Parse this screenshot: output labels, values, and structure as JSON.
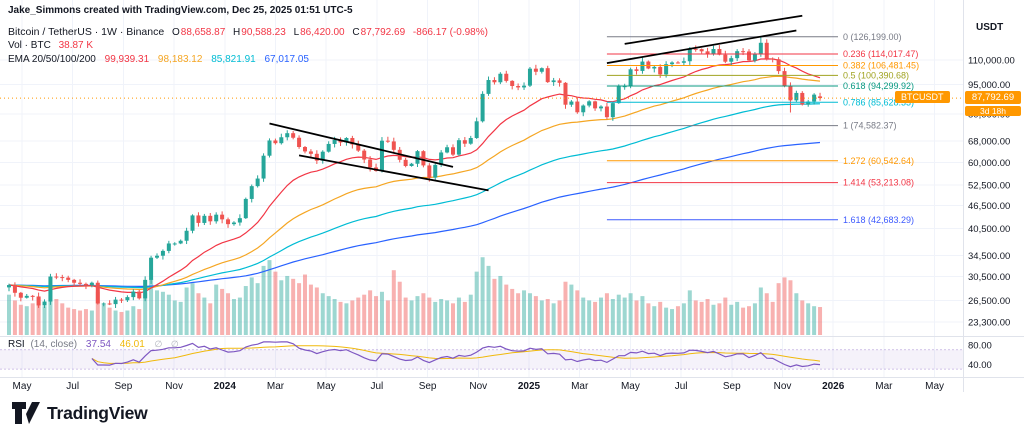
{
  "attribution": "Jake_Simmons created with TradingView.com, Dec 25, 2025 01:51 UTC-5",
  "legend": {
    "symbol": "Bitcoin / TetherUS · 1W · Binance",
    "o_label": "O",
    "o": "88,658.87",
    "h_label": "H",
    "h": "90,588.23",
    "l_label": "L",
    "l": "86,420.00",
    "c_label": "C",
    "c": "87,792.69",
    "change": "-866.17 (-0.98%)",
    "vol_label": "Vol · BTC",
    "vol_value": "38.87 K",
    "ema_label": "EMA 20/50/100/200",
    "ema_values": [
      {
        "text": "99,939.31",
        "color": "#f23645"
      },
      {
        "text": "98,183.12",
        "color": "#f5a623"
      },
      {
        "text": "85,821.91",
        "color": "#00bcd4"
      },
      {
        "text": "67,017.05",
        "color": "#2962ff"
      }
    ]
  },
  "rsi_legend": {
    "title": "RSI",
    "params": "(14, close)",
    "value": "37.54",
    "ma_value": "46.01",
    "icons": "∅ ∅"
  },
  "axis": {
    "currency": "USDT",
    "price_ticks": [
      {
        "v": 110000,
        "label": "110,000.00"
      },
      {
        "v": 95000,
        "label": "95,000.00"
      },
      {
        "v": 80000,
        "label": "80,000.00"
      },
      {
        "v": 68000,
        "label": "68,000.00"
      },
      {
        "v": 60000,
        "label": "60,000.00"
      },
      {
        "v": 52500,
        "label": "52,500.00"
      },
      {
        "v": 46500,
        "label": "46,500.00"
      },
      {
        "v": 40500,
        "label": "40,500.00"
      },
      {
        "v": 34500,
        "label": "34,500.00"
      },
      {
        "v": 30500,
        "label": "30,500.00"
      },
      {
        "v": 26500,
        "label": "26,500.00"
      },
      {
        "v": 23300,
        "label": "23,300.00"
      }
    ],
    "rsi_ticks": [
      {
        "v": 80,
        "label": "80.00"
      },
      {
        "v": 40,
        "label": "40.00"
      }
    ],
    "time_labels": [
      "May",
      "Jul",
      "Sep",
      "Nov",
      "2024",
      "Mar",
      "May",
      "Jul",
      "Sep",
      "Nov",
      "2025",
      "Mar",
      "May",
      "Jul",
      "Sep",
      "Nov",
      "2026",
      "Mar",
      "May"
    ],
    "badge": {
      "symbol": "BTCUSDT",
      "price": "87,792.69",
      "countdown": "3d 18h"
    }
  },
  "fib_levels": [
    {
      "label": "0 (126,199.00)",
      "value": 126199.0,
      "color": "#787b86"
    },
    {
      "label": "0.236 (114,017.47)",
      "value": 114017.47,
      "color": "#f23645"
    },
    {
      "label": "0.382 (106,481.45)",
      "value": 106481.45,
      "color": "#ff9800"
    },
    {
      "label": "0.5 (100,390.68)",
      "value": 100390.68,
      "color": "#a0a321"
    },
    {
      "label": "0.618 (94,299.92)",
      "value": 94299.92,
      "color": "#089981"
    },
    {
      "label": "0.786 (85,628.33)",
      "value": 85628.33,
      "color": "#00bcd4"
    },
    {
      "label": "1 (74,582.37)",
      "value": 74582.37,
      "color": "#787b86"
    },
    {
      "label": "1.272 (60,542.64)",
      "value": 60542.64,
      "color": "#ff9800"
    },
    {
      "label": "1.414 (53,213.08)",
      "value": 53213.08,
      "color": "#f23645"
    },
    {
      "label": "1.618 (42,683.29)",
      "value": 42683.29,
      "color": "#3d5afe"
    }
  ],
  "drawings": {
    "channel_2024": {
      "upper": [
        [
          44,
          75500
        ],
        [
          75,
          58400
        ]
      ],
      "lower": [
        [
          49,
          62500
        ],
        [
          81,
          50800
        ]
      ]
    },
    "channel_2025": {
      "upper": [
        [
          104,
          121000
        ],
        [
          134,
          143000
        ]
      ],
      "lower": [
        [
          101,
          108000
        ],
        [
          133,
          131000
        ]
      ]
    },
    "fib_start_index": 101,
    "fib_end_x": 838
  },
  "logo": {
    "text": "TradingView"
  },
  "colors": {
    "up": "#26a69a",
    "down": "#ef5350",
    "neg": "#f23645",
    "ema20": "#f23645",
    "ema50": "#f5a623",
    "ema100": "#00bcd4",
    "ema200": "#2962ff",
    "rsi": "#7e57c2",
    "rsi_ma": "#f0b90b",
    "grid": "#f0f3fa",
    "separator": "#e0e3eb",
    "text": "#131722",
    "muted": "#787b86",
    "badge": "#ff9800",
    "channel": "#000000",
    "rsi_band_fill": "rgba(126,87,194,0.08)",
    "rsi_band_line": "rgba(126,87,194,0.45)"
  },
  "chart_data": {
    "type": "candlestick",
    "title": "Bitcoin / TetherUS",
    "interval": "1W",
    "exchange": "Binance",
    "quote": "USDT",
    "x_range": [
      "Apr 2023",
      "May 2026"
    ],
    "y_scale": "log",
    "y_range": [
      22500,
      150000
    ],
    "legend_ohlc": {
      "open": 88658.87,
      "high": 90588.23,
      "low": 86420.0,
      "close": 87792.69,
      "change": -866.17,
      "change_pct": -0.98
    },
    "indicators": {
      "ema_periods": [
        20,
        50,
        100,
        200
      ],
      "ema_last": [
        99939.31,
        98183.12,
        85821.91,
        67017.05
      ],
      "rsi_period": 14,
      "rsi_last": 37.54,
      "rsi_ma_last": 46.01,
      "vol_last_kbtc": 38.87
    },
    "closes": [
      29000,
      27700,
      26900,
      27200,
      27100,
      25700,
      26300,
      30500,
      30400,
      30300,
      29900,
      29400,
      29200,
      29000,
      29400,
      26000,
      26000,
      25900,
      26600,
      26500,
      27000,
      27900,
      26800,
      29900,
      34100,
      34500,
      35500,
      37100,
      37100,
      37700,
      40000,
      43800,
      41900,
      43700,
      42300,
      44000,
      42800,
      41600,
      42000,
      43100,
      48300,
      52100,
      54500,
      62400,
      68300,
      67200,
      69600,
      71300,
      69400,
      65700,
      64000,
      63100,
      60600,
      63900,
      66900,
      68500,
      67500,
      69300,
      66700,
      64300,
      61000,
      58200,
      57000,
      68200,
      67900,
      64600,
      60900,
      58700,
      59500,
      64100,
      58900,
      54800,
      59100,
      63600,
      65600,
      62800,
      68400,
      67000,
      69300,
      76500,
      90000,
      97700,
      96400,
      101400,
      97200,
      94300,
      93500,
      94500,
      104500,
      102600,
      104800,
      96500,
      97500,
      96100,
      84400,
      86000,
      80700,
      84000,
      86100,
      82600,
      83500,
      78400,
      85200,
      94000,
      94200,
      104100,
      103100,
      109000,
      104600,
      105600,
      101000,
      107300,
      108400,
      108200,
      109200,
      117500,
      117300,
      115800,
      114000,
      117400,
      113500,
      108900,
      111200,
      115900,
      115700,
      109700,
      114200,
      121800,
      111000,
      110500,
      103000,
      94300,
      86600,
      90500,
      84500,
      86000,
      89600,
      87792.69
    ],
    "volumes": [
      56,
      48,
      42,
      40,
      44,
      52,
      40,
      68,
      50,
      44,
      38,
      36,
      34,
      36,
      34,
      60,
      42,
      38,
      34,
      32,
      34,
      40,
      36,
      58,
      78,
      62,
      60,
      56,
      48,
      46,
      66,
      72,
      58,
      52,
      44,
      70,
      64,
      58,
      50,
      52,
      68,
      80,
      72,
      96,
      104,
      88,
      76,
      82,
      78,
      72,
      84,
      70,
      66,
      58,
      54,
      50,
      46,
      44,
      48,
      52,
      56,
      62,
      54,
      60,
      48,
      90,
      74,
      52,
      48,
      54,
      58,
      52,
      46,
      50,
      48,
      44,
      52,
      46,
      56,
      88,
      108,
      96,
      78,
      82,
      70,
      64,
      58,
      62,
      58,
      54,
      48,
      50,
      44,
      48,
      74,
      70,
      62,
      52,
      48,
      46,
      52,
      58,
      50,
      56,
      52,
      58,
      48,
      54,
      44,
      40,
      46,
      38,
      36,
      40,
      44,
      62,
      48,
      46,
      50,
      42,
      44,
      52,
      42,
      46,
      38,
      40,
      44,
      66,
      58,
      46,
      72,
      80,
      76,
      58,
      48,
      44,
      40,
      38.87
    ],
    "high_overrides": {
      "127": 126199
    },
    "low_overrides": {
      "132": 80600
    },
    "last_candle": {
      "open": 88658.87,
      "high": 90588.23,
      "low": 86420.0,
      "close": 87792.69
    }
  }
}
